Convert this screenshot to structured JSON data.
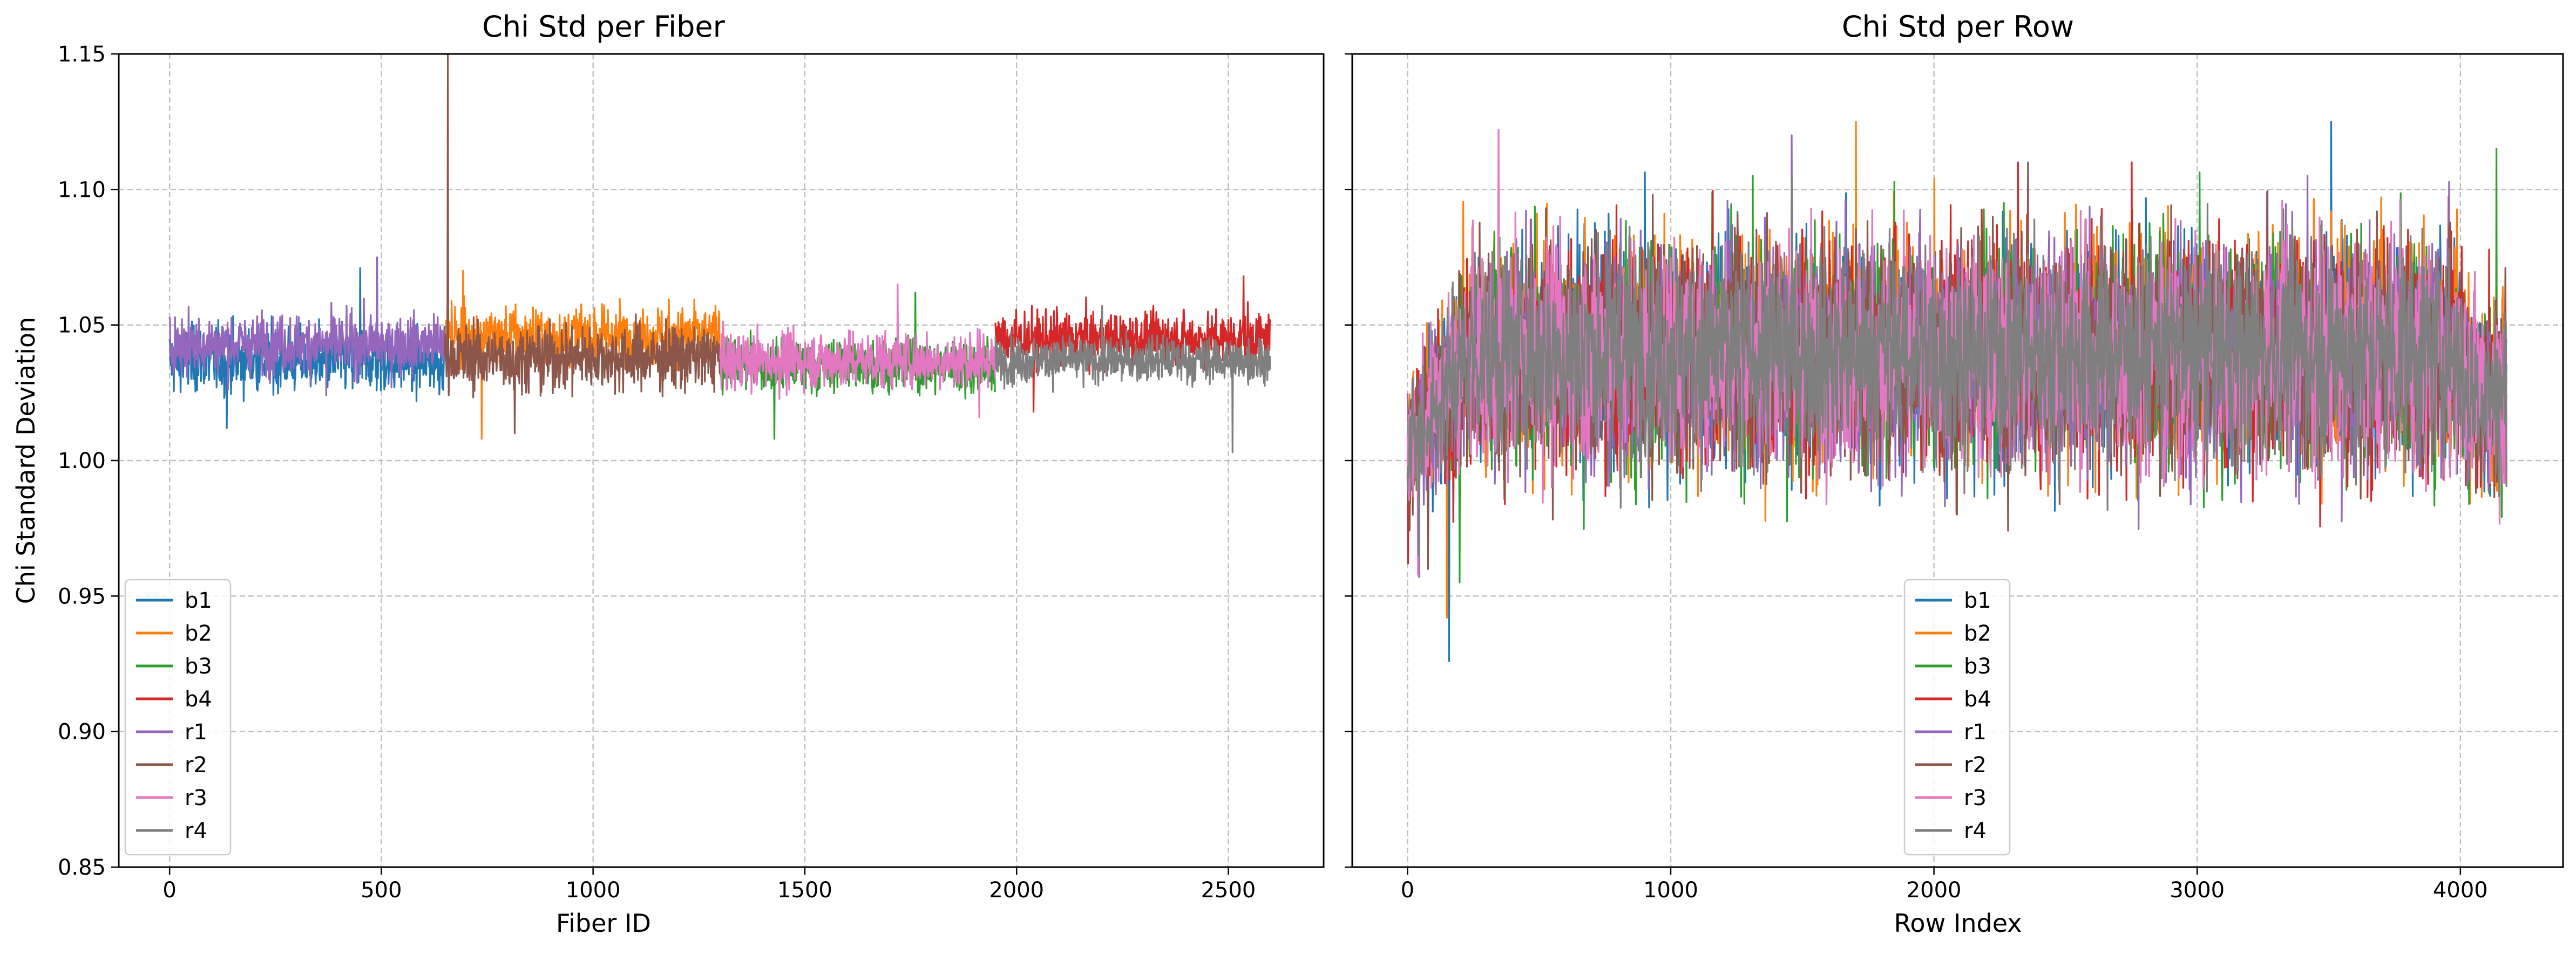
{
  "chart_data": [
    {
      "type": "line",
      "title": "Chi Std per Fiber",
      "xlabel": "Fiber ID",
      "ylabel": "Chi Standard Deviation",
      "xlim": [
        -120,
        2725
      ],
      "ylim": [
        0.85,
        1.15
      ],
      "xticks": [
        0,
        500,
        1000,
        1500,
        2000,
        2500
      ],
      "yticks": [
        0.85,
        0.9,
        0.95,
        1.0,
        1.05,
        1.1,
        1.15
      ],
      "ytick_labels": [
        "0.85",
        "0.90",
        "0.95",
        "1.00",
        "1.05",
        "1.10",
        "1.15"
      ],
      "grid": true,
      "legend_position": "lower-left",
      "series": [
        {
          "name": "b1",
          "color": "#1f77b4",
          "x_range": [
            0,
            649
          ],
          "mean": 1.037,
          "spread": 0.01,
          "min": 1.012,
          "max": 1.071
        },
        {
          "name": "b2",
          "color": "#ff7f0e",
          "x_range": [
            650,
            1299
          ],
          "mean": 1.046,
          "spread": 0.009,
          "min": 1.008,
          "max": 1.07
        },
        {
          "name": "b3",
          "color": "#2ca02c",
          "x_range": [
            1300,
            1949
          ],
          "mean": 1.035,
          "spread": 0.008,
          "min": 1.008,
          "max": 1.062
        },
        {
          "name": "b4",
          "color": "#d62728",
          "x_range": [
            1950,
            2599
          ],
          "mean": 1.045,
          "spread": 0.008,
          "min": 1.018,
          "max": 1.068
        },
        {
          "name": "r1",
          "color": "#9467bd",
          "x_range": [
            0,
            649
          ],
          "mean": 1.043,
          "spread": 0.009,
          "min": 1.024,
          "max": 1.075
        },
        {
          "name": "r2",
          "color": "#8c564b",
          "x_range": [
            650,
            1299
          ],
          "mean": 1.038,
          "spread": 0.01,
          "min": 1.01,
          "max": 1.15
        },
        {
          "name": "r3",
          "color": "#e377c2",
          "x_range": [
            1300,
            1949
          ],
          "mean": 1.037,
          "spread": 0.009,
          "min": 1.016,
          "max": 1.065
        },
        {
          "name": "r4",
          "color": "#7f7f7f",
          "x_range": [
            1950,
            2599
          ],
          "mean": 1.037,
          "spread": 0.007,
          "min": 1.003,
          "max": 1.057
        }
      ]
    },
    {
      "type": "line",
      "title": "Chi Std per Row",
      "xlabel": "Row Index",
      "ylabel": "",
      "xlim": [
        -210,
        4390
      ],
      "ylim": [
        0.85,
        1.15
      ],
      "xticks": [
        0,
        1000,
        2000,
        3000,
        4000
      ],
      "yticks": [
        0.85,
        0.9,
        0.95,
        1.0,
        1.05,
        1.1,
        1.15
      ],
      "grid": true,
      "legend_position": "lower-center",
      "series": [
        {
          "name": "b1",
          "color": "#1f77b4",
          "x_range": [
            0,
            4175
          ],
          "mean": 1.04,
          "spread": 0.035,
          "min": 0.926,
          "max": 1.125
        },
        {
          "name": "b2",
          "color": "#ff7f0e",
          "x_range": [
            0,
            4175
          ],
          "mean": 1.042,
          "spread": 0.035,
          "min": 0.942,
          "max": 1.125
        },
        {
          "name": "b3",
          "color": "#2ca02c",
          "x_range": [
            0,
            4175
          ],
          "mean": 1.04,
          "spread": 0.035,
          "min": 0.955,
          "max": 1.115
        },
        {
          "name": "b4",
          "color": "#d62728",
          "x_range": [
            0,
            4175
          ],
          "mean": 1.04,
          "spread": 0.035,
          "min": 0.962,
          "max": 1.11
        },
        {
          "name": "r1",
          "color": "#9467bd",
          "x_range": [
            0,
            4175
          ],
          "mean": 1.04,
          "spread": 0.035,
          "min": 0.957,
          "max": 1.12
        },
        {
          "name": "r2",
          "color": "#8c564b",
          "x_range": [
            0,
            4175
          ],
          "mean": 1.04,
          "spread": 0.035,
          "min": 0.96,
          "max": 1.11
        },
        {
          "name": "r3",
          "color": "#e377c2",
          "x_range": [
            0,
            4175
          ],
          "mean": 1.04,
          "spread": 0.035,
          "min": 0.958,
          "max": 1.122
        },
        {
          "name": "r4",
          "color": "#7f7f7f",
          "x_range": [
            0,
            4175
          ],
          "mean": 1.04,
          "spread": 0.033,
          "min": 0.965,
          "max": 1.105
        }
      ]
    }
  ]
}
